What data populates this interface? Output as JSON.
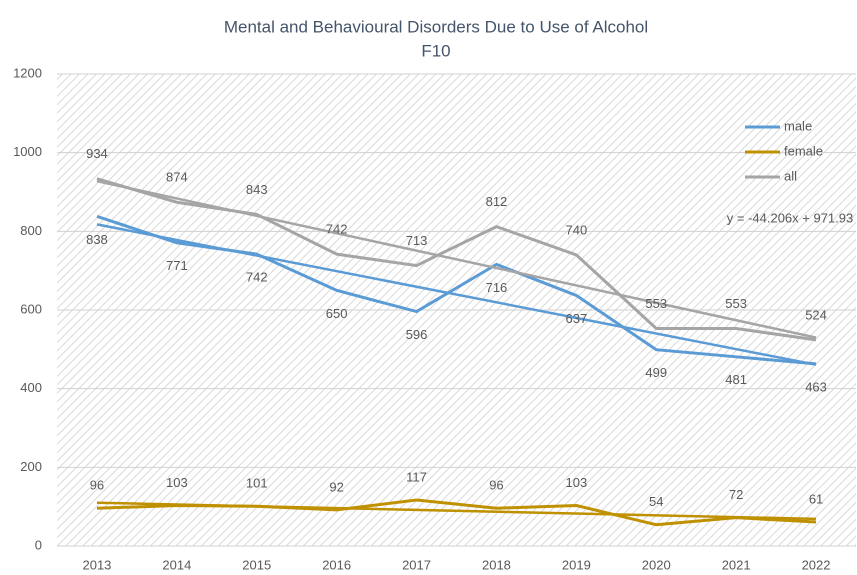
{
  "chart_data": {
    "type": "line",
    "title": "Mental and Behavioural Disorders Due to Use of Alcohol",
    "subtitle": "F10",
    "categories": [
      "2013",
      "2014",
      "2015",
      "2016",
      "2017",
      "2018",
      "2019",
      "2020",
      "2021",
      "2022"
    ],
    "series": [
      {
        "name": "male",
        "color": "#5b9bd5",
        "values": [
          838,
          771,
          742,
          650,
          596,
          716,
          637,
          499,
          481,
          463
        ]
      },
      {
        "name": "female",
        "color": "#bf9000",
        "values": [
          96,
          103,
          101,
          92,
          117,
          96,
          103,
          54,
          72,
          61
        ]
      },
      {
        "name": "all",
        "color": "#a5a5a5",
        "values": [
          934,
          874,
          843,
          742,
          713,
          812,
          740,
          553,
          553,
          524
        ]
      }
    ],
    "annotation": "y = -44.206x + 971.93",
    "ylim": [
      0,
      1200
    ],
    "yticks": [
      0,
      200,
      400,
      600,
      800,
      1000,
      1200
    ],
    "grid": true,
    "legend": "top-right",
    "trendline": true
  }
}
